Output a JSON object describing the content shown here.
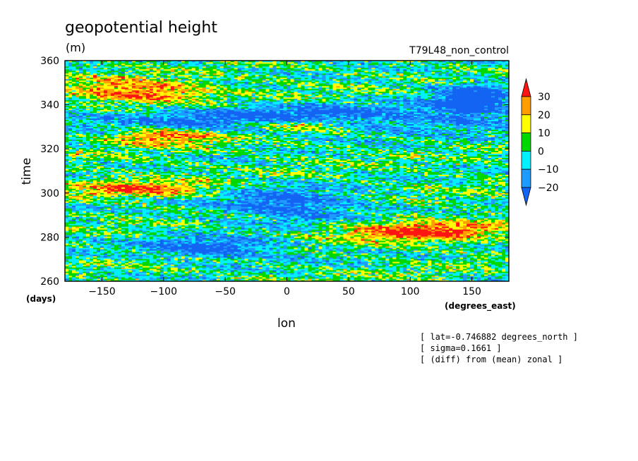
{
  "header": {
    "title": "geopotential height",
    "units": "(m)",
    "run_label": "T79L48_non_control"
  },
  "axes": {
    "xlabel": "lon",
    "xunits": "(degrees_east)",
    "ylabel": "time",
    "yunits": "(days)"
  },
  "info_lines": [
    "[ lat=-0.746882 degrees_north ]",
    "[ sigma=0.1661 ]",
    "[ (diff) from (mean) zonal ]"
  ],
  "colors": {
    "bin_below_-20": "#1464f4",
    "bin_-20_-10": "#1e9bff",
    "bin_-10_0": "#00f0ff",
    "bin_0_10": "#00d800",
    "bin_10_20": "#ffff00",
    "bin_20_30": "#ff9e00",
    "bin_above_30": "#ff1414"
  },
  "chart_data": {
    "type": "heatmap",
    "x_range": [
      -180,
      180
    ],
    "y_range": [
      260,
      360
    ],
    "x_ticks": [
      -150,
      -100,
      -50,
      0,
      50,
      100,
      150
    ],
    "y_ticks": [
      260,
      280,
      300,
      320,
      340,
      360
    ],
    "colorbar_levels": [
      -20,
      -10,
      0,
      10,
      20,
      30
    ],
    "colorbar_extends": "both",
    "dominant_features": [
      {
        "kind": "negative",
        "lon_range": [
          -180,
          180
        ],
        "time_range": [
          327,
          340
        ],
        "max_magnitude_m": 30
      },
      {
        "kind": "positive",
        "lon_range": [
          -150,
          -50
        ],
        "time_range": [
          322,
          330
        ],
        "max_magnitude_m": 35
      },
      {
        "kind": "positive",
        "lon_range": [
          -40,
          60
        ],
        "time_range": [
          328,
          334
        ],
        "max_magnitude_m": 35
      },
      {
        "kind": "negative",
        "lon_range": [
          120,
          180
        ],
        "time_range": [
          335,
          350
        ],
        "max_magnitude_m": 40
      },
      {
        "kind": "positive",
        "lon_range": [
          -180,
          -60
        ],
        "time_range": [
          340,
          352
        ],
        "max_magnitude_m": 35
      },
      {
        "kind": "negative",
        "lon_range": [
          -60,
          60
        ],
        "time_range": [
          287,
          302
        ],
        "max_magnitude_m": 30
      },
      {
        "kind": "positive",
        "lon_range": [
          40,
          180
        ],
        "time_range": [
          278,
          288
        ],
        "max_magnitude_m": 35
      },
      {
        "kind": "negative",
        "lon_range": [
          -120,
          0
        ],
        "time_range": [
          270,
          280
        ],
        "max_magnitude_m": 30
      },
      {
        "kind": "positive",
        "lon_range": [
          -180,
          -60
        ],
        "time_range": [
          298,
          306
        ],
        "max_magnitude_m": 30
      }
    ]
  }
}
